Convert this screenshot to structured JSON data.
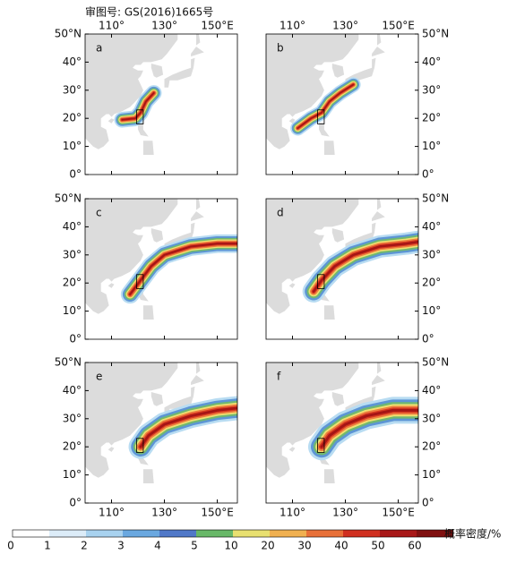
{
  "header": {
    "approval_number": "审图号: GS(2016)1665号"
  },
  "panels": [
    {
      "label": "a"
    },
    {
      "label": "b"
    },
    {
      "label": "c"
    },
    {
      "label": "d"
    },
    {
      "label": "e"
    },
    {
      "label": "f"
    }
  ],
  "lat_ticks": [
    "0°",
    "10°",
    "20°",
    "30°",
    "40°",
    "50°N"
  ],
  "lon_ticks": [
    "110°",
    "130°",
    "150°E"
  ],
  "colorbar": {
    "labels": [
      "0",
      "1",
      "2",
      "3",
      "4",
      "5",
      "10",
      "20",
      "30",
      "40",
      "50",
      "60"
    ],
    "title": "概率密度/%"
  }
}
